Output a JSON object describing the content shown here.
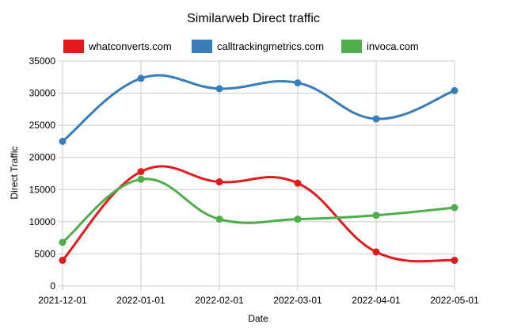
{
  "chart_data": {
    "type": "line",
    "title": "Similarweb Direct traffic",
    "xlabel": "Date",
    "ylabel": "Direct Traffic",
    "categories": [
      "2021-12-01",
      "2022-01-01",
      "2022-02-01",
      "2022-03-01",
      "2022-04-01",
      "2022-05-01"
    ],
    "ylim": [
      0,
      35000
    ],
    "yticks": [
      0,
      5000,
      10000,
      15000,
      20000,
      25000,
      30000,
      35000
    ],
    "grid": true,
    "legend_position": "top",
    "series": [
      {
        "name": "whatconverts.com",
        "color": "#e31a1c",
        "values": [
          4000,
          17800,
          16200,
          16000,
          5300,
          4000
        ]
      },
      {
        "name": "calltrackingmetrics.com",
        "color": "#377eb8",
        "values": [
          22500,
          32300,
          30700,
          31600,
          26000,
          30400
        ]
      },
      {
        "name": "invoca.com",
        "color": "#4daf4a",
        "values": [
          6800,
          16600,
          10400,
          10400,
          11000,
          12200
        ]
      }
    ]
  }
}
